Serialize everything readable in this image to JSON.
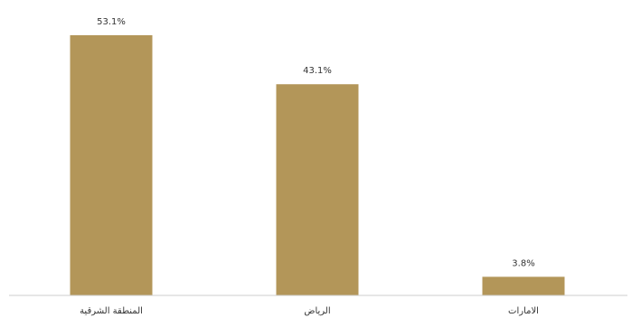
{
  "chart_data": {
    "type": "bar",
    "categories": [
      "المنطقة الشرقية",
      "الرياض",
      "الامارات"
    ],
    "values": [
      53.1,
      43.1,
      3.8
    ],
    "data_labels": [
      "53.1%",
      "43.1%",
      "3.8%"
    ],
    "title": "",
    "xlabel": "",
    "ylabel": "",
    "ylim": [
      0,
      53.1
    ],
    "grid": false,
    "legend": "none",
    "bar_color": "#b39659",
    "axis_color": "#cccccc"
  }
}
